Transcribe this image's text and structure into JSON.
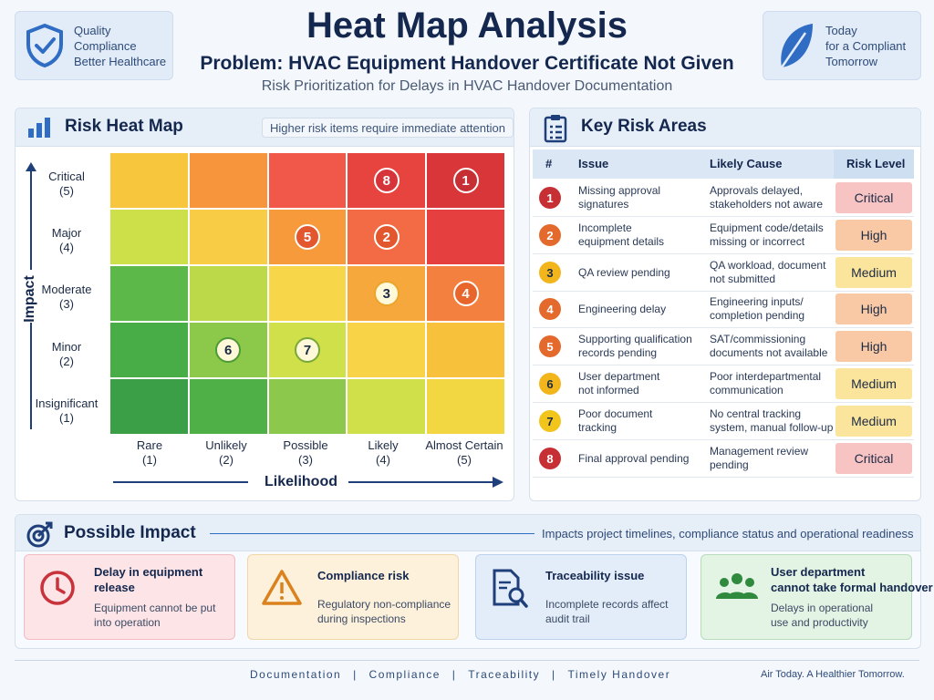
{
  "header": {
    "left_badge": [
      "Quality",
      "Compliance",
      "Better Healthcare"
    ],
    "right_badge": [
      "Today",
      "for a Compliant",
      "Tomorrow"
    ],
    "title": "Heat Map Analysis",
    "problem": "Problem: HVAC Equipment Handover Certificate Not Given",
    "subtitle": "Risk Prioritization for Delays in HVAC Handover Documentation"
  },
  "heatmap": {
    "title": "Risk Heat Map",
    "note": "Higher risk items require immediate attention",
    "y_axis_title": "Impact",
    "x_axis_title": "Likelihood",
    "impact_levels": [
      {
        "name": "Critical",
        "score": "(5)"
      },
      {
        "name": "Major",
        "score": "(4)"
      },
      {
        "name": "Moderate",
        "score": "(3)"
      },
      {
        "name": "Minor",
        "score": "(2)"
      },
      {
        "name": "Insignificant",
        "score": "(1)"
      }
    ],
    "likelihood_levels": [
      {
        "name": "Rare",
        "score": "(1)"
      },
      {
        "name": "Unlikely",
        "score": "(2)"
      },
      {
        "name": "Possible",
        "score": "(3)"
      },
      {
        "name": "Likely",
        "score": "(4)"
      },
      {
        "name": "Almost Certain",
        "score": "(5)"
      }
    ],
    "cell_colors": [
      [
        "#f7c63c",
        "#f6953b",
        "#f1584a",
        "#e8443f",
        "#d9363a"
      ],
      [
        "#cde04a",
        "#f8cc45",
        "#f79a3c",
        "#f26b44",
        "#e5403f"
      ],
      [
        "#5cb848",
        "#bcd94a",
        "#f7d64a",
        "#f7a83c",
        "#f48040"
      ],
      [
        "#49ad47",
        "#8cc84a",
        "#d0e04a",
        "#f8d348",
        "#f8c13c"
      ],
      [
        "#3a9f47",
        "#4fb048",
        "#8bc84b",
        "#cfe04a",
        "#f3d742"
      ]
    ],
    "markers": [
      {
        "id": "8",
        "impact": 5,
        "likelihood": 4,
        "color": "#d7333a"
      },
      {
        "id": "1",
        "impact": 5,
        "likelihood": 5,
        "color": "#c62f33"
      },
      {
        "id": "5",
        "impact": 4,
        "likelihood": 3,
        "color": "#e2572d"
      },
      {
        "id": "2",
        "impact": 4,
        "likelihood": 4,
        "color": "#e2572d"
      },
      {
        "id": "3",
        "impact": 3,
        "likelihood": 4,
        "color": "#e9a52c"
      },
      {
        "id": "4",
        "impact": 3,
        "likelihood": 5,
        "color": "#e8662c"
      },
      {
        "id": "6",
        "impact": 2,
        "likelihood": 2,
        "color": "#4d9a36"
      },
      {
        "id": "7",
        "impact": 2,
        "likelihood": 3,
        "color": "#7aa836"
      }
    ]
  },
  "risks": {
    "title": "Key Risk Areas",
    "columns": [
      "#",
      "Issue",
      "Likely Cause",
      "Risk Level"
    ],
    "rows": [
      {
        "num": "1",
        "issue": [
          "Missing approval",
          "signatures"
        ],
        "cause": [
          "Approvals delayed,",
          "stakeholders not aware"
        ],
        "level": "Critical",
        "num_color": "#c62f33",
        "level_bg": "#f7c3c3"
      },
      {
        "num": "2",
        "issue": [
          "Incomplete",
          "equipment details"
        ],
        "cause": [
          "Equipment code/details",
          "missing or incorrect"
        ],
        "level": "High",
        "num_color": "#e36a2c",
        "level_bg": "#f8c9a4"
      },
      {
        "num": "3",
        "issue": [
          "QA review pending"
        ],
        "cause": [
          "QA workload, document",
          "not submitted"
        ],
        "level": "Medium",
        "num_color": "#f2b51c",
        "level_bg": "#fbe49b"
      },
      {
        "num": "4",
        "issue": [
          "Engineering delay"
        ],
        "cause": [
          "Engineering inputs/",
          "completion pending"
        ],
        "level": "High",
        "num_color": "#e36a2c",
        "level_bg": "#f8c9a4"
      },
      {
        "num": "5",
        "issue": [
          "Supporting qualification",
          "records pending"
        ],
        "cause": [
          "SAT/commissioning",
          "documents not available"
        ],
        "level": "High",
        "num_color": "#e36a2c",
        "level_bg": "#f8c9a4"
      },
      {
        "num": "6",
        "issue": [
          "User department",
          "not informed"
        ],
        "cause": [
          "Poor interdepartmental",
          "communication"
        ],
        "level": "Medium",
        "num_color": "#f2b51c",
        "level_bg": "#fbe49b"
      },
      {
        "num": "7",
        "issue": [
          "Poor document",
          "tracking"
        ],
        "cause": [
          "No central tracking",
          "system, manual follow-up"
        ],
        "level": "Medium",
        "num_color": "#f2c51c",
        "level_bg": "#fbe49b"
      },
      {
        "num": "8",
        "issue": [
          "Final approval pending"
        ],
        "cause": [
          "Management review",
          "pending"
        ],
        "level": "Critical",
        "num_color": "#c62f33",
        "level_bg": "#f7c3c3"
      }
    ]
  },
  "impact": {
    "title": "Possible Impact",
    "note": "Impacts project timelines, compliance status and operational readiness",
    "cards": [
      {
        "title": [
          "Delay in equipment",
          "release"
        ],
        "desc": [
          "Equipment cannot be put",
          "into operation"
        ],
        "icon": "clock-icon",
        "bg": "#fde4e6",
        "border": "#f2bcc2",
        "icon_color": "#c9323b"
      },
      {
        "title": [
          "Compliance risk"
        ],
        "desc": [
          "Regulatory non-compliance",
          "during inspections"
        ],
        "icon": "warning-icon",
        "bg": "#fdf1dc",
        "border": "#f0d7a6",
        "icon_color": "#d9821e"
      },
      {
        "title": [
          "Traceability issue"
        ],
        "desc": [
          "Incomplete records affect",
          "audit trail"
        ],
        "icon": "document-search-icon",
        "bg": "#e3edf9",
        "border": "#bcd1ec",
        "icon_color": "#1f3f7a"
      },
      {
        "title": [
          "User department",
          "cannot take formal handover"
        ],
        "desc": [
          "Delays in operational",
          "use and productivity"
        ],
        "icon": "users-icon",
        "bg": "#e3f3e4",
        "border": "#b8dcbb",
        "icon_color": "#2f8a3d"
      }
    ]
  },
  "footer": {
    "links": [
      "Documentation",
      "Compliance",
      "Traceability",
      "Timely Handover"
    ],
    "separator": "|",
    "tagline": "Air Today. A Healthier Tomorrow."
  }
}
